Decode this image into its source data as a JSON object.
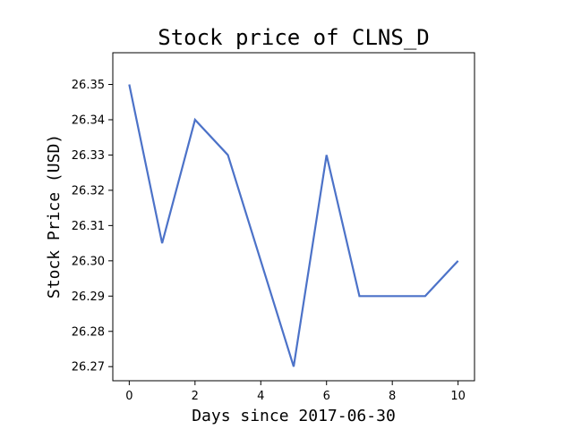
{
  "chart_data": {
    "type": "line",
    "title": "Stock price of CLNS_D",
    "xlabel": "Days since 2017-06-30",
    "ylabel": "Stock Price (USD)",
    "x": [
      0,
      1,
      2,
      3,
      5,
      6,
      7,
      8,
      9,
      10
    ],
    "series": [
      {
        "values": [
          26.35,
          26.305,
          26.34,
          26.33,
          26.27,
          26.33,
          26.29,
          26.29,
          26.29,
          26.3
        ]
      }
    ],
    "xlim": [
      -0.5,
      10.5
    ],
    "ylim": [
      26.266,
      26.359
    ],
    "xticks": [
      0,
      2,
      4,
      6,
      8,
      10
    ],
    "yticks": [
      26.27,
      26.28,
      26.29,
      26.3,
      26.31,
      26.32,
      26.33,
      26.34,
      26.35
    ],
    "xtick_labels": [
      "0",
      "2",
      "4",
      "6",
      "8",
      "10"
    ],
    "ytick_labels": [
      "26.27",
      "26.28",
      "26.29",
      "26.30",
      "26.31",
      "26.32",
      "26.33",
      "26.34",
      "26.35"
    ],
    "grid": false,
    "line_color": "#4c72c8"
  }
}
